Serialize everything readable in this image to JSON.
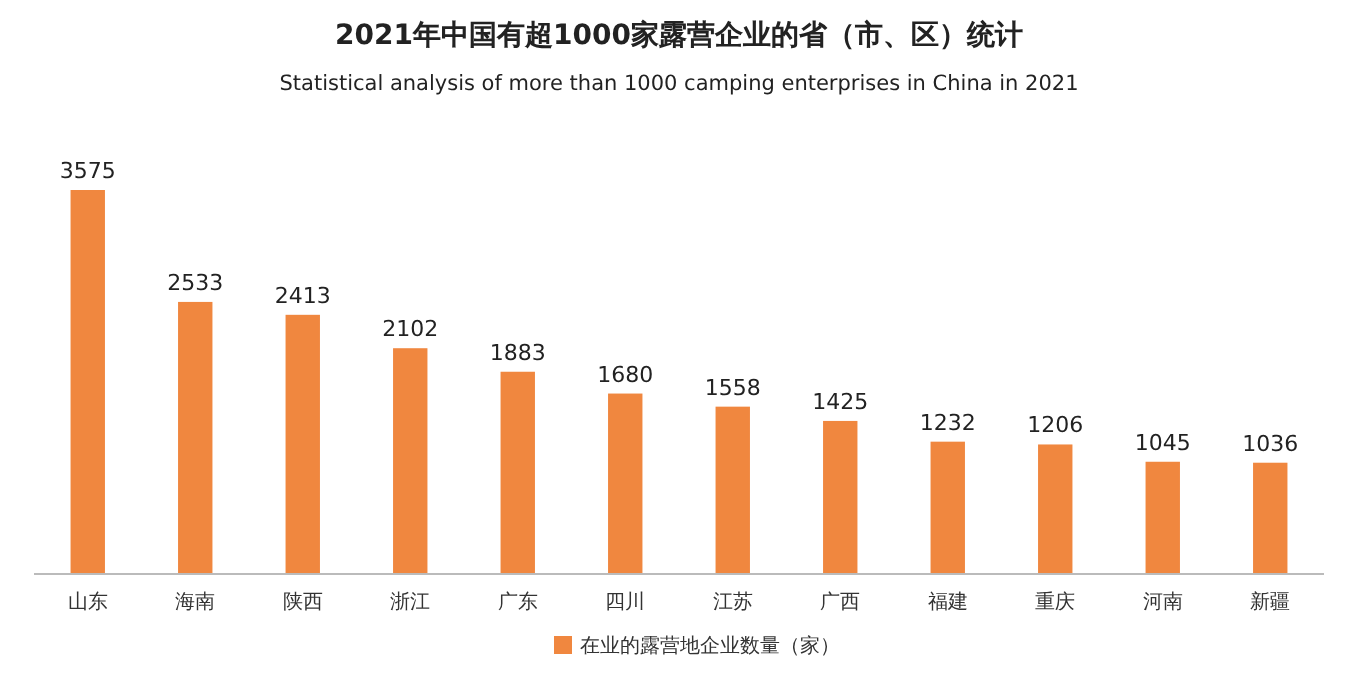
{
  "chart_data": {
    "type": "bar",
    "title": "2021年中国有超1000家露营企业的省（市、区）统计",
    "subtitle": "Statistical analysis of more than 1000 camping enterprises in China in 2021",
    "categories": [
      "山东",
      "海南",
      "陕西",
      "浙江",
      "广东",
      "四川",
      "江苏",
      "广西",
      "福建",
      "重庆",
      "河南",
      "新疆"
    ],
    "series": [
      {
        "name": "在业的露营地企业数量（家）",
        "color": "#f0873f",
        "values": [
          3575,
          2533,
          2413,
          2102,
          1883,
          1680,
          1558,
          1425,
          1232,
          1206,
          1045,
          1036
        ]
      }
    ],
    "data_labels": true,
    "legend": "bottom"
  }
}
